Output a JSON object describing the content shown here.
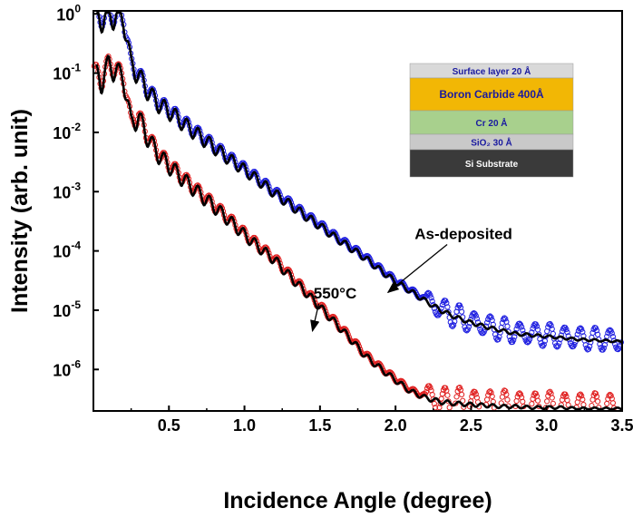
{
  "chart_data": {
    "type": "scatter",
    "xlabel": "Incidence Angle (degree)",
    "ylabel": "Intensity (arb. unit)",
    "xlim": [
      0.0,
      3.5
    ],
    "ylim_log10": [
      -6.7,
      0.05
    ],
    "y_scale": "log",
    "grid": false,
    "x_ticks": [
      "0.5",
      "1.0",
      "1.5",
      "2.0",
      "2.5",
      "3.0",
      "3.5"
    ],
    "x_tick_values": [
      0.5,
      1.0,
      1.5,
      2.0,
      2.5,
      3.0,
      3.5
    ],
    "y_tick_exponents": [
      0,
      -1,
      -2,
      -3,
      -4,
      -5,
      -6
    ],
    "y_tick_base": "10",
    "series": [
      {
        "name": "As-deposited",
        "color": "#1f1fe0",
        "marker": "open-circle",
        "x": [
          0.0,
          0.05,
          0.1,
          0.15,
          0.2,
          0.25,
          0.3,
          0.35,
          0.4,
          0.45,
          0.5,
          0.6,
          0.7,
          0.8,
          0.9,
          1.0,
          1.1,
          1.2,
          1.3,
          1.4,
          1.5,
          1.6,
          1.7,
          1.8,
          1.9,
          2.0,
          2.1,
          2.2,
          2.3,
          2.4,
          2.5,
          2.6,
          2.7,
          2.8,
          2.9,
          3.0,
          3.1,
          3.2,
          3.3,
          3.4,
          3.5
        ],
        "y": [
          1.0,
          0.9,
          0.95,
          0.98,
          0.9,
          0.15,
          0.1,
          0.06,
          0.04,
          0.03,
          0.025,
          0.015,
          0.0095,
          0.006,
          0.0038,
          0.0025,
          0.0016,
          0.001,
          0.00065,
          0.00042,
          0.00028,
          0.00018,
          0.00012,
          8e-05,
          5e-05,
          3.2e-05,
          2.2e-05,
          1.5e-05,
          1.05e-05,
          8e-06,
          6.5e-06,
          5.5e-06,
          4.8e-06,
          4.2e-06,
          4e-06,
          3.8e-06,
          3.6e-06,
          3.4e-06,
          3.3e-06,
          3.2e-06,
          3.1e-06
        ]
      },
      {
        "name": "550°C",
        "color": "#e02020",
        "marker": "open-circle",
        "x": [
          0.0,
          0.05,
          0.1,
          0.15,
          0.2,
          0.25,
          0.3,
          0.35,
          0.4,
          0.45,
          0.5,
          0.6,
          0.7,
          0.8,
          0.9,
          1.0,
          1.1,
          1.2,
          1.3,
          1.4,
          1.5,
          1.6,
          1.7,
          1.8,
          1.9,
          2.0,
          2.1,
          2.2,
          2.3,
          2.4,
          2.5,
          2.6,
          2.7,
          2.8,
          2.9,
          3.0,
          3.1,
          3.2,
          3.3,
          3.4,
          3.5
        ],
        "y": [
          0.12,
          0.08,
          0.15,
          0.12,
          0.09,
          0.015,
          0.02,
          0.01,
          0.006,
          0.004,
          0.003,
          0.0017,
          0.001,
          0.0006,
          0.00035,
          0.0002,
          0.00012,
          7.5e-05,
          4e-05,
          2.2e-05,
          1.2e-05,
          6.5e-06,
          3.5e-06,
          1.8e-06,
          1.1e-06,
          7e-07,
          4.5e-07,
          3.5e-07,
          3e-07,
          2.8e-07,
          2.7e-07,
          2.6e-07,
          2.5e-07,
          2.5e-07,
          2.4e-07,
          2.4e-07,
          2.4e-07,
          2.3e-07,
          2.3e-07,
          2.3e-07,
          2.3e-07
        ]
      }
    ],
    "annotations": [
      {
        "text": "As-deposited",
        "x": 2.45,
        "y_log10": -3.8,
        "arrow_to": {
          "x": 1.95,
          "y_log10": -4.7
        }
      },
      {
        "text": "550°C",
        "x": 1.6,
        "y_log10": -4.8,
        "arrow_to": {
          "x": 1.45,
          "y_log10": -5.35
        }
      }
    ],
    "inset": {
      "layers": [
        {
          "label": "Surface layer 20 Å",
          "color": "#d9d9d9",
          "text_color": "#1a1aa0"
        },
        {
          "label": "Boron Carbide 400Å",
          "color": "#f2b705",
          "text_color": "#1a1aa0"
        },
        {
          "label": "Cr 20 Å",
          "color": "#a8d08d",
          "text_color": "#1a1aa0"
        },
        {
          "label": "SiO₂ 30 Å",
          "color": "#c9c9c9",
          "text_color": "#1a1aa0"
        },
        {
          "label": "Si Substrate",
          "color": "#3a3a3a",
          "text_color": "#ffffff"
        }
      ]
    }
  }
}
